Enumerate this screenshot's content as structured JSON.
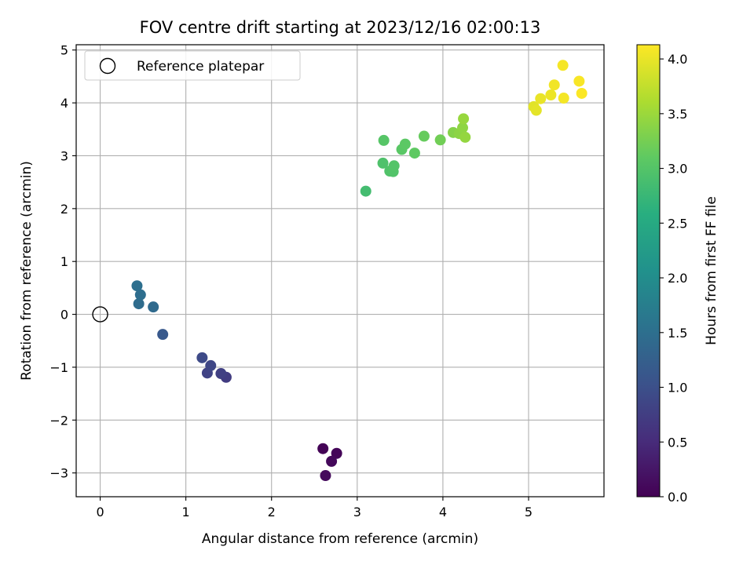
{
  "chart_data": {
    "type": "scatter",
    "title": "FOV centre drift starting at 2023/12/16 02:00:13",
    "xlabel": "Angular distance from reference (arcmin)",
    "ylabel": "Rotation from reference (arcmin)",
    "xlim": [
      -0.28,
      5.88
    ],
    "ylim": [
      -3.45,
      5.1
    ],
    "xticks": [
      0,
      1,
      2,
      3,
      4,
      5
    ],
    "yticks": [
      -3,
      -2,
      -1,
      0,
      1,
      2,
      3,
      4,
      5
    ],
    "tick_text": {
      "x": [
        "0",
        "1",
        "2",
        "3",
        "4",
        "5"
      ],
      "y": [
        "−3",
        "−2",
        "−1",
        "0",
        "1",
        "2",
        "3",
        "4",
        "5"
      ]
    },
    "grid": true,
    "legend": {
      "placement": "top-left",
      "entries": [
        "Reference platepar"
      ]
    },
    "reference_point": {
      "x": 0,
      "y": 0,
      "label": "Reference platepar",
      "marker": "hollow-circle"
    },
    "colorbar": {
      "label": "Hours from first FF file",
      "colormap": "viridis",
      "range": [
        0,
        4.13
      ],
      "ticks": [
        0.0,
        0.5,
        1.0,
        1.5,
        2.0,
        2.5,
        3.0,
        3.5,
        4.0
      ],
      "tick_text": [
        "0.0",
        "0.5",
        "1.0",
        "1.5",
        "2.0",
        "2.5",
        "3.0",
        "3.5",
        "4.0"
      ]
    },
    "series": [
      {
        "points": [
          {
            "x": 2.6,
            "y": -2.54,
            "hours": 0.02
          },
          {
            "x": 2.76,
            "y": -2.63,
            "hours": 0.05
          },
          {
            "x": 2.7,
            "y": -2.78,
            "hours": 0.08
          },
          {
            "x": 2.63,
            "y": -3.05,
            "hours": 0.1
          },
          {
            "x": 1.47,
            "y": -1.19,
            "hours": 0.72
          },
          {
            "x": 1.41,
            "y": -1.12,
            "hours": 0.78
          },
          {
            "x": 1.25,
            "y": -1.11,
            "hours": 0.83
          },
          {
            "x": 1.29,
            "y": -0.97,
            "hours": 0.88
          },
          {
            "x": 1.19,
            "y": -0.82,
            "hours": 0.92
          },
          {
            "x": 0.73,
            "y": -0.38,
            "hours": 1.15
          },
          {
            "x": 0.62,
            "y": 0.14,
            "hours": 1.42
          },
          {
            "x": 0.45,
            "y": 0.2,
            "hours": 1.45
          },
          {
            "x": 0.47,
            "y": 0.37,
            "hours": 1.48
          },
          {
            "x": 0.43,
            "y": 0.54,
            "hours": 1.5
          },
          {
            "x": 3.1,
            "y": 2.33,
            "hours": 2.85
          },
          {
            "x": 3.3,
            "y": 2.86,
            "hours": 2.95
          },
          {
            "x": 3.38,
            "y": 2.71,
            "hours": 2.97
          },
          {
            "x": 3.42,
            "y": 2.7,
            "hours": 2.98
          },
          {
            "x": 3.43,
            "y": 2.81,
            "hours": 3.0
          },
          {
            "x": 3.31,
            "y": 3.29,
            "hours": 3.02
          },
          {
            "x": 3.52,
            "y": 3.12,
            "hours": 3.05
          },
          {
            "x": 3.56,
            "y": 3.22,
            "hours": 3.07
          },
          {
            "x": 3.67,
            "y": 3.05,
            "hours": 3.1
          },
          {
            "x": 3.78,
            "y": 3.37,
            "hours": 3.15
          },
          {
            "x": 3.97,
            "y": 3.3,
            "hours": 3.22
          },
          {
            "x": 4.12,
            "y": 3.44,
            "hours": 3.35
          },
          {
            "x": 4.19,
            "y": 3.42,
            "hours": 3.4
          },
          {
            "x": 4.23,
            "y": 3.53,
            "hours": 3.42
          },
          {
            "x": 4.26,
            "y": 3.35,
            "hours": 3.45
          },
          {
            "x": 4.24,
            "y": 3.7,
            "hours": 3.47
          },
          {
            "x": 5.06,
            "y": 3.93,
            "hours": 3.95
          },
          {
            "x": 5.09,
            "y": 3.86,
            "hours": 3.97
          },
          {
            "x": 5.14,
            "y": 4.08,
            "hours": 4.0
          },
          {
            "x": 5.26,
            "y": 4.15,
            "hours": 4.02
          },
          {
            "x": 5.3,
            "y": 4.34,
            "hours": 4.05
          },
          {
            "x": 5.41,
            "y": 4.09,
            "hours": 4.07
          },
          {
            "x": 5.4,
            "y": 4.71,
            "hours": 4.08
          },
          {
            "x": 5.59,
            "y": 4.41,
            "hours": 4.1
          },
          {
            "x": 5.62,
            "y": 4.18,
            "hours": 4.12
          }
        ]
      }
    ]
  }
}
